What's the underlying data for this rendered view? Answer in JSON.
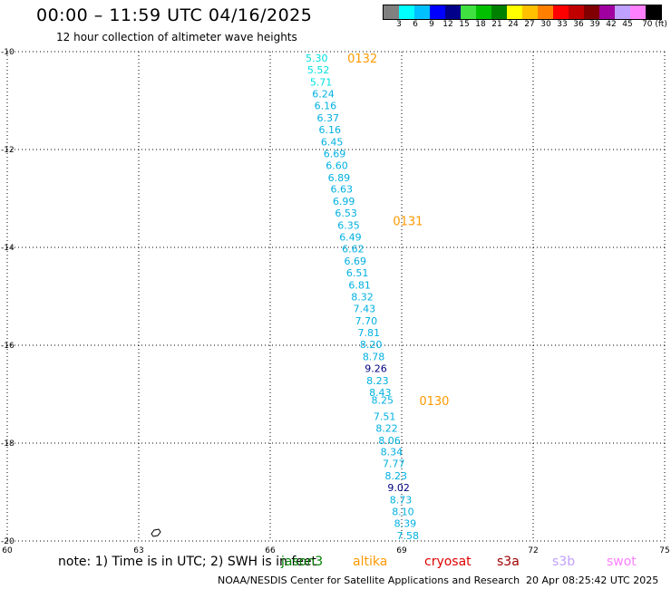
{
  "header": {
    "title": "00:00 – 11:59 UTC 04/16/2025",
    "subtitle": "12 hour collection of altimeter wave heights"
  },
  "legend": {
    "colors": [
      "#808080",
      "#00ffff",
      "#00c0ff",
      "#0000ff",
      "#00008b",
      "#40e040",
      "#00c000",
      "#008000",
      "#ffff00",
      "#ffc000",
      "#ff8000",
      "#ff0000",
      "#c00000",
      "#800000",
      "#a000a0",
      "#c0a0ff",
      "#ff80ff",
      "#000000"
    ],
    "labels": [
      "3",
      "6",
      "9",
      "12",
      "15",
      "18",
      "21",
      "24",
      "27",
      "30",
      "33",
      "36",
      "39",
      "42",
      "45",
      "70 (ft)"
    ]
  },
  "note": "note:  1) Time is in UTC;  2) SWH is in feet",
  "satellites": [
    {
      "name": "jason3",
      "color": "#008000"
    },
    {
      "name": "altika",
      "color": "#ff9900"
    },
    {
      "name": "cryosat",
      "color": "#e00000"
    },
    {
      "name": "s3a",
      "color": "#a00000"
    },
    {
      "name": "s3b",
      "color": "#c0a0ff"
    },
    {
      "name": "swot",
      "color": "#ff80ff"
    }
  ],
  "footer": {
    "credit": "NOAA/NESDIS Center for Satellite Applications and Research",
    "generated": "20 Apr 08:25:42 UTC 2025"
  },
  "chart_data": {
    "type": "scatter",
    "title": "00:00 – 11:59 UTC 04/16/2025",
    "subtitle": "12 hour collection of altimeter wave heights",
    "xlabel": "",
    "ylabel": "",
    "xlim": [
      60,
      75
    ],
    "ylim": [
      -20,
      -10
    ],
    "x_ticks": [
      "60",
      "63",
      "66",
      "69",
      "72",
      "75"
    ],
    "y_ticks": [
      "-10",
      "-12",
      "-14",
      "-16",
      "-18",
      "-20"
    ],
    "grid": true,
    "series": [
      {
        "name": "altika",
        "points": [
          {
            "lon": 67.06,
            "lat": -10.13,
            "swh": "5.30",
            "color": "#00e0e0"
          },
          {
            "lon": 67.1,
            "lat": -10.37,
            "swh": "5.52",
            "color": "#00e0e0"
          },
          {
            "lon": 67.16,
            "lat": -10.62,
            "swh": "5.71",
            "color": "#00e0e0"
          },
          {
            "lon": 67.21,
            "lat": -10.86,
            "swh": "6.24",
            "color": "#00b0e0"
          },
          {
            "lon": 67.26,
            "lat": -11.1,
            "swh": "6.16",
            "color": "#00b0e0"
          },
          {
            "lon": 67.32,
            "lat": -11.35,
            "swh": "6.37",
            "color": "#00b0e0"
          },
          {
            "lon": 67.36,
            "lat": -11.59,
            "swh": "6.16",
            "color": "#00b0e0"
          },
          {
            "lon": 67.41,
            "lat": -11.84,
            "swh": "6.45",
            "color": "#00b0e0"
          },
          {
            "lon": 67.47,
            "lat": -12.08,
            "swh": "6.69",
            "color": "#00b0e0"
          },
          {
            "lon": 67.52,
            "lat": -12.32,
            "swh": "6.60",
            "color": "#00b0e0"
          },
          {
            "lon": 67.57,
            "lat": -12.57,
            "swh": "6.89",
            "color": "#00b0e0"
          },
          {
            "lon": 67.63,
            "lat": -12.81,
            "swh": "6.63",
            "color": "#00b0e0"
          },
          {
            "lon": 67.68,
            "lat": -13.06,
            "swh": "6.99",
            "color": "#00b0e0"
          },
          {
            "lon": 67.73,
            "lat": -13.3,
            "swh": "6.53",
            "color": "#00b0e0"
          },
          {
            "lon": 67.79,
            "lat": -13.55,
            "swh": "6.35",
            "color": "#00b0e0"
          },
          {
            "lon": 67.83,
            "lat": -13.79,
            "swh": "6.49",
            "color": "#00b0e0"
          },
          {
            "lon": 67.89,
            "lat": -14.03,
            "swh": "6.62",
            "color": "#00b0e0"
          },
          {
            "lon": 67.94,
            "lat": -14.28,
            "swh": "6.69",
            "color": "#00b0e0"
          },
          {
            "lon": 67.99,
            "lat": -14.52,
            "swh": "6.51",
            "color": "#00b0e0"
          },
          {
            "lon": 68.04,
            "lat": -14.77,
            "swh": "6.81",
            "color": "#00b0e0"
          },
          {
            "lon": 68.1,
            "lat": -15.01,
            "swh": "8.32",
            "color": "#00b0e0"
          },
          {
            "lon": 68.15,
            "lat": -15.25,
            "swh": "7.43",
            "color": "#00b0e0"
          },
          {
            "lon": 68.19,
            "lat": -15.5,
            "swh": "7.70",
            "color": "#00b0e0"
          },
          {
            "lon": 68.25,
            "lat": -15.74,
            "swh": "7.81",
            "color": "#00b0e0"
          },
          {
            "lon": 68.3,
            "lat": -15.98,
            "swh": "8.20",
            "color": "#00b0e0"
          },
          {
            "lon": 68.36,
            "lat": -16.23,
            "swh": "8.78",
            "color": "#00b0e0"
          },
          {
            "lon": 68.41,
            "lat": -16.47,
            "swh": "9.26",
            "color": "#000080"
          },
          {
            "lon": 68.45,
            "lat": -16.72,
            "swh": "8.23",
            "color": "#00b0e0"
          },
          {
            "lon": 68.51,
            "lat": -16.96,
            "swh": "8.43",
            "color": "#00b0e0"
          },
          {
            "lon": 68.56,
            "lat": -17.12,
            "swh": "8.25",
            "color": "#00b0e0"
          },
          {
            "lon": 68.61,
            "lat": -17.45,
            "swh": "7.51",
            "color": "#00b0e0"
          },
          {
            "lon": 68.66,
            "lat": -17.69,
            "swh": "8.22",
            "color": "#00b0e0"
          },
          {
            "lon": 68.72,
            "lat": -17.94,
            "swh": "8.06",
            "color": "#00b0e0"
          },
          {
            "lon": 68.77,
            "lat": -18.18,
            "swh": "8.34",
            "color": "#00b0e0"
          },
          {
            "lon": 68.82,
            "lat": -18.42,
            "swh": "7.77",
            "color": "#00b0e0"
          },
          {
            "lon": 68.87,
            "lat": -18.67,
            "swh": "8.23",
            "color": "#00b0e0"
          },
          {
            "lon": 68.93,
            "lat": -18.91,
            "swh": "9.02",
            "color": "#000080"
          },
          {
            "lon": 68.98,
            "lat": -19.16,
            "swh": "8.73",
            "color": "#00b0e0"
          },
          {
            "lon": 69.03,
            "lat": -19.4,
            "swh": "8.10",
            "color": "#00b0e0"
          },
          {
            "lon": 69.08,
            "lat": -19.64,
            "swh": "8.39",
            "color": "#00b0e0"
          },
          {
            "lon": 69.14,
            "lat": -19.89,
            "swh": "7.58",
            "color": "#00b0e0"
          }
        ]
      }
    ],
    "annotations": [
      {
        "text": "0132",
        "lon": 67.76,
        "lat": -10.13,
        "color": "#ff9900"
      },
      {
        "text": "0131",
        "lon": 68.8,
        "lat": -13.45,
        "color": "#ff9900"
      },
      {
        "text": "0130",
        "lon": 69.4,
        "lat": -17.13,
        "color": "#ff9900"
      }
    ]
  }
}
